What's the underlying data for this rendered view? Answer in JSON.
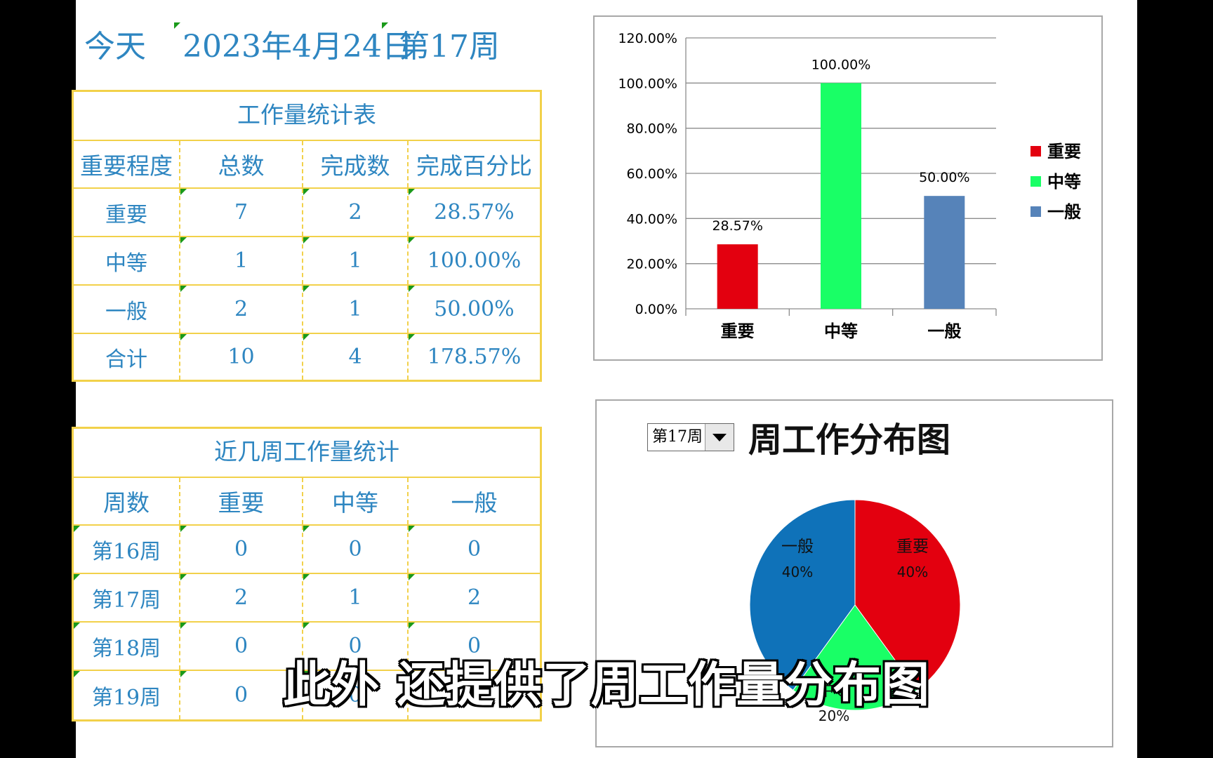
{
  "header": {
    "today_label": "今天",
    "date": "2023年4月24日",
    "week": "第17周"
  },
  "workload_table": {
    "title": "工作量统计表",
    "columns": [
      "重要程度",
      "总数",
      "完成数",
      "完成百分比"
    ],
    "rows": [
      [
        "重要",
        "7",
        "2",
        "28.57%"
      ],
      [
        "中等",
        "1",
        "1",
        "100.00%"
      ],
      [
        "一般",
        "2",
        "1",
        "50.00%"
      ],
      [
        "合计",
        "10",
        "4",
        "178.57%"
      ]
    ]
  },
  "weekly_table": {
    "title": "近几周工作量统计",
    "columns": [
      "周数",
      "重要",
      "中等",
      "一般"
    ],
    "rows": [
      [
        "第16周",
        "0",
        "0",
        "0"
      ],
      [
        "第17周",
        "2",
        "1",
        "2"
      ],
      [
        "第18周",
        "0",
        "0",
        "0"
      ],
      [
        "第19周",
        "0",
        "0",
        "0"
      ]
    ]
  },
  "pie_panel": {
    "selected_week": "第17周",
    "title": "周工作分布图"
  },
  "subtitle": "此外 还提供了周工作量分布图",
  "colors": {
    "important": "#e3000f",
    "medium": "#19ff66",
    "general": "#5683b9",
    "pie_general": "#0f72b9",
    "table_border": "#f2d14a",
    "text_blue": "#2e86c1"
  },
  "chart_data": [
    {
      "type": "bar",
      "categories": [
        "重要",
        "中等",
        "一般"
      ],
      "values": [
        28.57,
        100.0,
        50.0
      ],
      "data_labels": [
        "28.57%",
        "100.00%",
        "50.00%"
      ],
      "ylim": [
        0,
        120
      ],
      "y_ticks": [
        "0.00%",
        "20.00%",
        "40.00%",
        "60.00%",
        "80.00%",
        "100.00%",
        "120.00%"
      ],
      "legend": [
        "重要",
        "中等",
        "一般"
      ],
      "legend_position": "right",
      "grid": true
    },
    {
      "type": "pie",
      "title": "周工作分布图",
      "labels": [
        "重要",
        "中等",
        "一般"
      ],
      "values": [
        40,
        20,
        40
      ],
      "data_labels": [
        "40%",
        "20%",
        "40%"
      ]
    }
  ]
}
